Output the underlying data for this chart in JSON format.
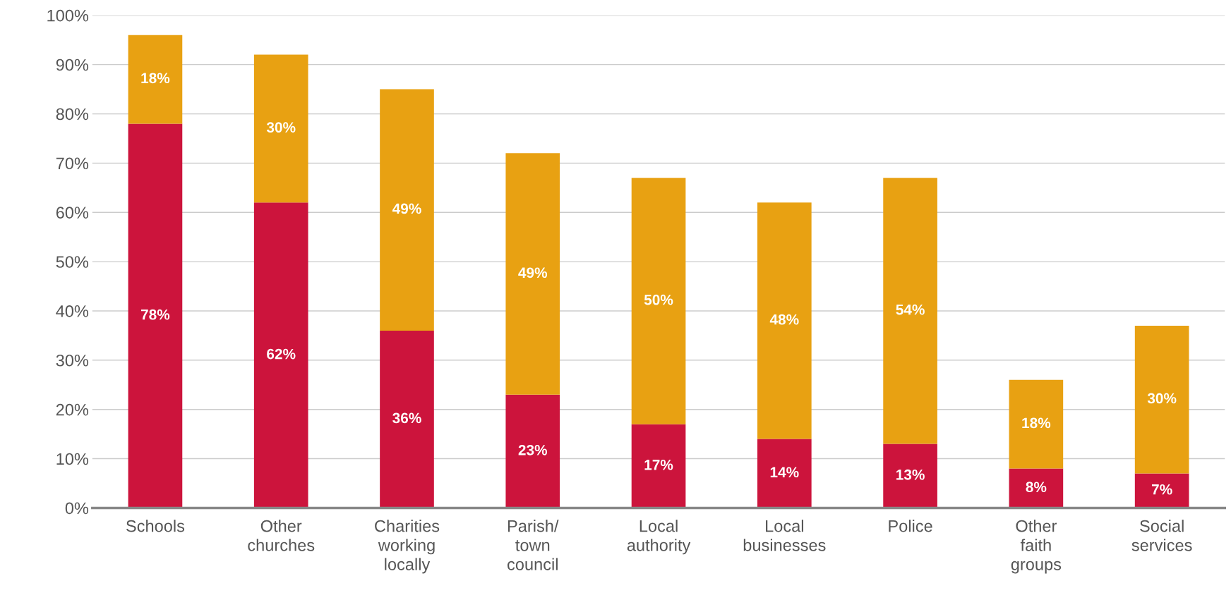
{
  "chart_data": {
    "type": "bar",
    "stacked": true,
    "categories": [
      "Schools",
      "Other\nchurches",
      "Charities\nworking\nlocally",
      "Parish/\ntown\ncouncil",
      "Local\nauthority",
      "Local\nbusinesses",
      "Police",
      "Other\nfaith\ngroups",
      "Social\nservices"
    ],
    "series": [
      {
        "color": "#cc143c",
        "values": [
          78,
          62,
          36,
          23,
          17,
          14,
          13,
          8,
          7
        ],
        "value_labels": [
          "78%",
          "62%",
          "36%",
          "23%",
          "17%",
          "14%",
          "13%",
          "8%",
          "7%"
        ]
      },
      {
        "color": "#e8a112",
        "values": [
          18,
          30,
          49,
          49,
          50,
          48,
          54,
          18,
          30
        ],
        "value_labels": [
          "18%",
          "30%",
          "49%",
          "49%",
          "50%",
          "48%",
          "54%",
          "18%",
          "30%"
        ]
      }
    ],
    "ylim": [
      0,
      100
    ],
    "yticks": [
      {
        "value": 0,
        "label": "0%"
      },
      {
        "value": 10,
        "label": "10%"
      },
      {
        "value": 20,
        "label": "20%"
      },
      {
        "value": 30,
        "label": "30%"
      },
      {
        "value": 40,
        "label": "40%"
      },
      {
        "value": 50,
        "label": "50%"
      },
      {
        "value": 60,
        "label": "60%"
      },
      {
        "value": 70,
        "label": "70%"
      },
      {
        "value": 80,
        "label": "80%"
      },
      {
        "value": 90,
        "label": "90%"
      },
      {
        "value": 100,
        "label": "100%"
      }
    ],
    "grid": "y",
    "legend": false
  }
}
